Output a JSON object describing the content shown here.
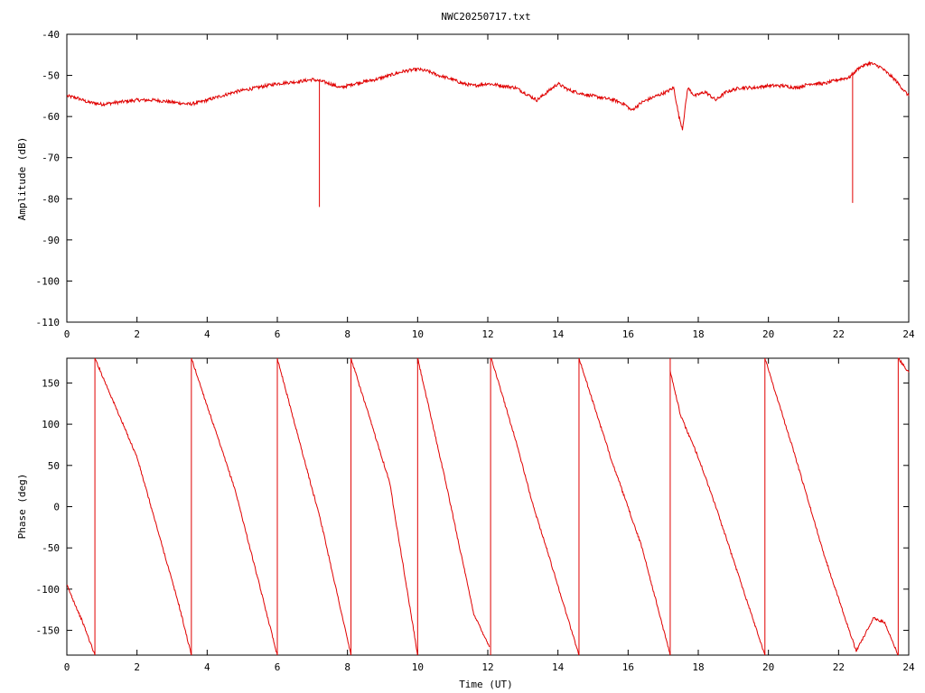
{
  "title": "NWC20250717.txt",
  "colors": {
    "trace": "#e00000",
    "axis": "#000000",
    "background": "#ffffff"
  },
  "chart_data": [
    {
      "type": "line",
      "ylabel": "Amplitude (dB)",
      "xlabel": "",
      "xlim": [
        0,
        24
      ],
      "ylim": [
        -110,
        -40
      ],
      "x_ticks": [
        "0",
        "2",
        "4",
        "6",
        "8",
        "10",
        "12",
        "14",
        "16",
        "18",
        "20",
        "22",
        "24"
      ],
      "y_ticks": [
        "-40",
        "-50",
        "-60",
        "-70",
        "-80",
        "-90",
        "-100",
        "-110"
      ],
      "grid": false,
      "series": [
        {
          "x": [
            0,
            0.3,
            0.6,
            1.0,
            1.5,
            2.0,
            2.5,
            3.0,
            3.5,
            3.8,
            4.2,
            4.8,
            5.4,
            6.0,
            6.6,
            7.0,
            7.3,
            7.5,
            7.8,
            8.2,
            8.8,
            9.2,
            9.6,
            10.0,
            10.3,
            10.6,
            11.0,
            11.3,
            11.6,
            12.0,
            12.4,
            12.8,
            13.2,
            13.4,
            13.7,
            14.0,
            14.3,
            14.7,
            15.0,
            15.3,
            15.6,
            15.9,
            16.1,
            16.4,
            16.8,
            17.1,
            17.3,
            17.45,
            17.55,
            17.7,
            17.9,
            18.2,
            18.5,
            18.8,
            19.2,
            19.6,
            20.0,
            20.4,
            20.8,
            21.2,
            21.6,
            22.0,
            22.3,
            22.6,
            22.9,
            23.2,
            23.6,
            24.0
          ],
          "y": [
            -55,
            -55.5,
            -56.5,
            -57,
            -56.5,
            -56,
            -56,
            -56.5,
            -57,
            -56.5,
            -55.5,
            -54,
            -53,
            -52,
            -51.5,
            -51,
            -51.5,
            -52,
            -53,
            -52,
            -51,
            -50,
            -49,
            -48.5,
            -49,
            -50,
            -51,
            -52,
            -52.5,
            -52,
            -52.5,
            -53,
            -55,
            -56,
            -54,
            -52,
            -53.5,
            -54.5,
            -55,
            -55.5,
            -56,
            -57,
            -58.5,
            -56.5,
            -55,
            -54,
            -53,
            -60,
            -63,
            -53,
            -55,
            -54,
            -56,
            -54,
            -53,
            -53,
            -52.5,
            -52.5,
            -53,
            -52,
            -52,
            -51,
            -50.5,
            -48,
            -47,
            -48,
            -51,
            -55
          ],
          "spikes": [
            {
              "x": 7.2,
              "y": -82
            },
            {
              "x": 22.4,
              "y": -81
            }
          ]
        }
      ]
    },
    {
      "type": "line",
      "ylabel": "Phase (deg)",
      "xlabel": "Time (UT)",
      "xlim": [
        0,
        24
      ],
      "ylim": [
        -180,
        180
      ],
      "x_ticks": [
        "0",
        "2",
        "4",
        "6",
        "8",
        "10",
        "12",
        "14",
        "16",
        "18",
        "20",
        "22",
        "24"
      ],
      "y_ticks": [
        "150",
        "100",
        "50",
        "0",
        "-50",
        "-100",
        "-150"
      ],
      "grid": false,
      "series": [
        {
          "x": [
            0.0,
            0.45,
            0.8
          ],
          "y": [
            -95,
            -140,
            -180
          ]
        },
        {
          "x": [
            0.8,
            2.0,
            3.2,
            3.55
          ],
          "y": [
            180,
            60,
            -120,
            -180
          ]
        },
        {
          "x": [
            3.55,
            4.8,
            6.0
          ],
          "y": [
            180,
            20,
            -180
          ]
        },
        {
          "x": [
            6.0,
            7.0,
            7.2,
            8.1
          ],
          "y": [
            180,
            20,
            -10,
            -180
          ]
        },
        {
          "x": [
            8.1,
            9.2,
            10.0
          ],
          "y": [
            180,
            30,
            -180
          ]
        },
        {
          "x": [
            10.0,
            10.8,
            11.6,
            12.05
          ],
          "y": [
            180,
            30,
            -130,
            -170
          ]
        },
        {
          "x": [
            12.1,
            12.8,
            13.3,
            13.6,
            14.6
          ],
          "y": [
            180,
            80,
            0,
            -40,
            -180
          ]
        },
        {
          "x": [
            14.6,
            15.5,
            16.4,
            17.2
          ],
          "y": [
            180,
            60,
            -50,
            -180
          ]
        },
        {
          "x": [
            17.2,
            17.5,
            18.0,
            18.5,
            19.2,
            19.9
          ],
          "y": [
            165,
            110,
            60,
            0,
            -90,
            -180
          ]
        },
        {
          "x": [
            19.9,
            20.7,
            21.6,
            22.5,
            23.0,
            23.3,
            23.7
          ],
          "y": [
            180,
            70,
            -60,
            -175,
            -135,
            -140,
            -180
          ]
        },
        {
          "x": [
            23.7,
            24.0
          ],
          "y": [
            180,
            163
          ]
        }
      ],
      "wraps": [
        0.8,
        3.55,
        6.0,
        8.1,
        10.0,
        12.08,
        14.6,
        17.2,
        19.9,
        23.7
      ]
    }
  ]
}
